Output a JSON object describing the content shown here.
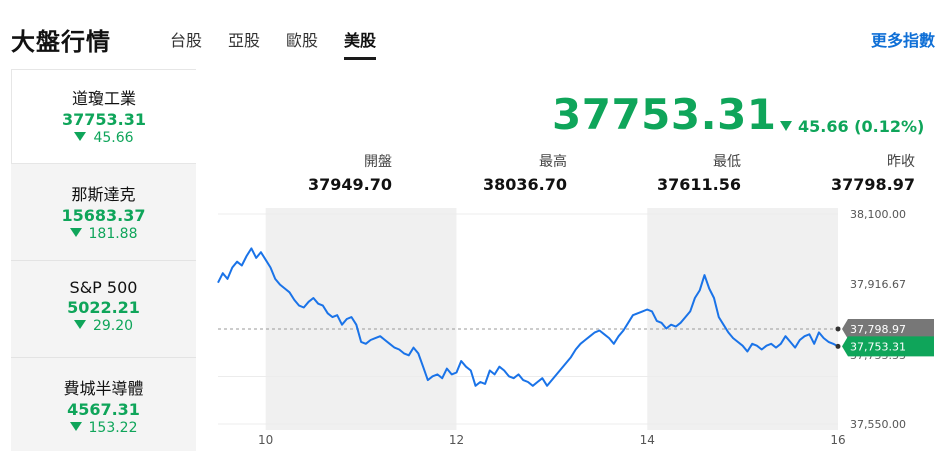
{
  "header": {
    "title": "大盤行情",
    "tabs": [
      {
        "label": "台股",
        "active": false
      },
      {
        "label": "亞股",
        "active": false
      },
      {
        "label": "歐股",
        "active": false
      },
      {
        "label": "美股",
        "active": true
      }
    ],
    "more_link": "更多指數"
  },
  "sidebar": {
    "items": [
      {
        "name": "道瓊工業",
        "price": "37753.31",
        "change": "45.66",
        "active": true
      },
      {
        "name": "那斯達克",
        "price": "15683.37",
        "change": "181.88",
        "active": false
      },
      {
        "name": "S&P 500",
        "price": "5022.21",
        "change": "29.20",
        "active": false
      },
      {
        "name": "費城半導體",
        "price": "4567.31",
        "change": "153.22",
        "active": false
      }
    ]
  },
  "quote": {
    "price": "37753.31",
    "change": "45.66 (0.12%)",
    "direction": "down",
    "stats": [
      {
        "label": "開盤",
        "value": "37949.70"
      },
      {
        "label": "最高",
        "value": "38036.70"
      },
      {
        "label": "最低",
        "value": "37611.56"
      },
      {
        "label": "昨收",
        "value": "37798.97"
      }
    ]
  },
  "colors": {
    "down": "#0fa55a",
    "line": "#1a73e8",
    "shade": "#f0f0f0",
    "link": "#0f6fd6"
  },
  "chart_data": {
    "type": "line",
    "ylim": [
      37550,
      38100
    ],
    "y_ticks": [
      "38,100.00",
      "37,916.67",
      "37,550.00"
    ],
    "x_ticks": [
      "10",
      "12",
      "14",
      "16"
    ],
    "x_tick_positions": [
      10,
      12,
      14,
      16
    ],
    "xlim": [
      9.5,
      16
    ],
    "shaded_ranges": [
      [
        10,
        12
      ],
      [
        14,
        16
      ]
    ],
    "reference": {
      "value": 37798.97,
      "label": "37,798.97"
    },
    "last": {
      "value": 37753.31,
      "label": "37,753.31"
    },
    "hidden_tick": "37,733.33",
    "series": [
      {
        "values": [
          [
            9.5,
            37920
          ],
          [
            9.55,
            37945
          ],
          [
            9.6,
            37930
          ],
          [
            9.65,
            37960
          ],
          [
            9.7,
            37975
          ],
          [
            9.75,
            37965
          ],
          [
            9.8,
            37990
          ],
          [
            9.85,
            38010
          ],
          [
            9.9,
            37985
          ],
          [
            9.95,
            38000
          ],
          [
            10.0,
            37980
          ],
          [
            10.05,
            37960
          ],
          [
            10.1,
            37930
          ],
          [
            10.15,
            37915
          ],
          [
            10.2,
            37905
          ],
          [
            10.25,
            37895
          ],
          [
            10.3,
            37875
          ],
          [
            10.35,
            37860
          ],
          [
            10.4,
            37855
          ],
          [
            10.45,
            37870
          ],
          [
            10.5,
            37880
          ],
          [
            10.55,
            37865
          ],
          [
            10.6,
            37860
          ],
          [
            10.65,
            37840
          ],
          [
            10.7,
            37830
          ],
          [
            10.75,
            37835
          ],
          [
            10.8,
            37810
          ],
          [
            10.85,
            37825
          ],
          [
            10.9,
            37830
          ],
          [
            10.95,
            37810
          ],
          [
            11.0,
            37765
          ],
          [
            11.05,
            37760
          ],
          [
            11.1,
            37770
          ],
          [
            11.15,
            37775
          ],
          [
            11.2,
            37780
          ],
          [
            11.25,
            37770
          ],
          [
            11.3,
            37760
          ],
          [
            11.35,
            37750
          ],
          [
            11.4,
            37745
          ],
          [
            11.45,
            37735
          ],
          [
            11.5,
            37730
          ],
          [
            11.55,
            37750
          ],
          [
            11.6,
            37735
          ],
          [
            11.65,
            37700
          ],
          [
            11.7,
            37665
          ],
          [
            11.75,
            37675
          ],
          [
            11.8,
            37680
          ],
          [
            11.85,
            37670
          ],
          [
            11.9,
            37695
          ],
          [
            11.95,
            37680
          ],
          [
            12.0,
            37685
          ],
          [
            12.05,
            37715
          ],
          [
            12.1,
            37700
          ],
          [
            12.15,
            37690
          ],
          [
            12.2,
            37650
          ],
          [
            12.25,
            37660
          ],
          [
            12.3,
            37655
          ],
          [
            12.35,
            37690
          ],
          [
            12.4,
            37680
          ],
          [
            12.45,
            37700
          ],
          [
            12.5,
            37690
          ],
          [
            12.55,
            37675
          ],
          [
            12.6,
            37670
          ],
          [
            12.65,
            37680
          ],
          [
            12.7,
            37665
          ],
          [
            12.75,
            37660
          ],
          [
            12.8,
            37650
          ],
          [
            12.85,
            37660
          ],
          [
            12.9,
            37670
          ],
          [
            12.95,
            37650
          ],
          [
            13.0,
            37665
          ],
          [
            13.05,
            37680
          ],
          [
            13.1,
            37695
          ],
          [
            13.15,
            37710
          ],
          [
            13.2,
            37725
          ],
          [
            13.25,
            37745
          ],
          [
            13.3,
            37760
          ],
          [
            13.35,
            37770
          ],
          [
            13.4,
            37780
          ],
          [
            13.45,
            37790
          ],
          [
            13.5,
            37795
          ],
          [
            13.55,
            37785
          ],
          [
            13.6,
            37775
          ],
          [
            13.65,
            37760
          ],
          [
            13.7,
            37780
          ],
          [
            13.75,
            37795
          ],
          [
            13.8,
            37815
          ],
          [
            13.85,
            37835
          ],
          [
            13.9,
            37840
          ],
          [
            13.95,
            37845
          ],
          [
            14.0,
            37850
          ],
          [
            14.05,
            37845
          ],
          [
            14.1,
            37820
          ],
          [
            14.15,
            37815
          ],
          [
            14.2,
            37800
          ],
          [
            14.25,
            37810
          ],
          [
            14.3,
            37805
          ],
          [
            14.35,
            37815
          ],
          [
            14.4,
            37830
          ],
          [
            14.45,
            37845
          ],
          [
            14.5,
            37880
          ],
          [
            14.55,
            37900
          ],
          [
            14.6,
            37940
          ],
          [
            14.65,
            37905
          ],
          [
            14.7,
            37880
          ],
          [
            14.75,
            37830
          ],
          [
            14.8,
            37810
          ],
          [
            14.85,
            37790
          ],
          [
            14.9,
            37775
          ],
          [
            14.95,
            37765
          ],
          [
            15.0,
            37755
          ],
          [
            15.05,
            37740
          ],
          [
            15.1,
            37760
          ],
          [
            15.15,
            37755
          ],
          [
            15.2,
            37745
          ],
          [
            15.25,
            37755
          ],
          [
            15.3,
            37760
          ],
          [
            15.35,
            37750
          ],
          [
            15.4,
            37760
          ],
          [
            15.45,
            37780
          ],
          [
            15.5,
            37765
          ],
          [
            15.55,
            37750
          ],
          [
            15.6,
            37770
          ],
          [
            15.65,
            37780
          ],
          [
            15.7,
            37785
          ],
          [
            15.75,
            37760
          ],
          [
            15.8,
            37790
          ],
          [
            15.85,
            37775
          ],
          [
            15.9,
            37765
          ],
          [
            15.95,
            37760
          ],
          [
            16.0,
            37753.31
          ]
        ]
      }
    ]
  }
}
